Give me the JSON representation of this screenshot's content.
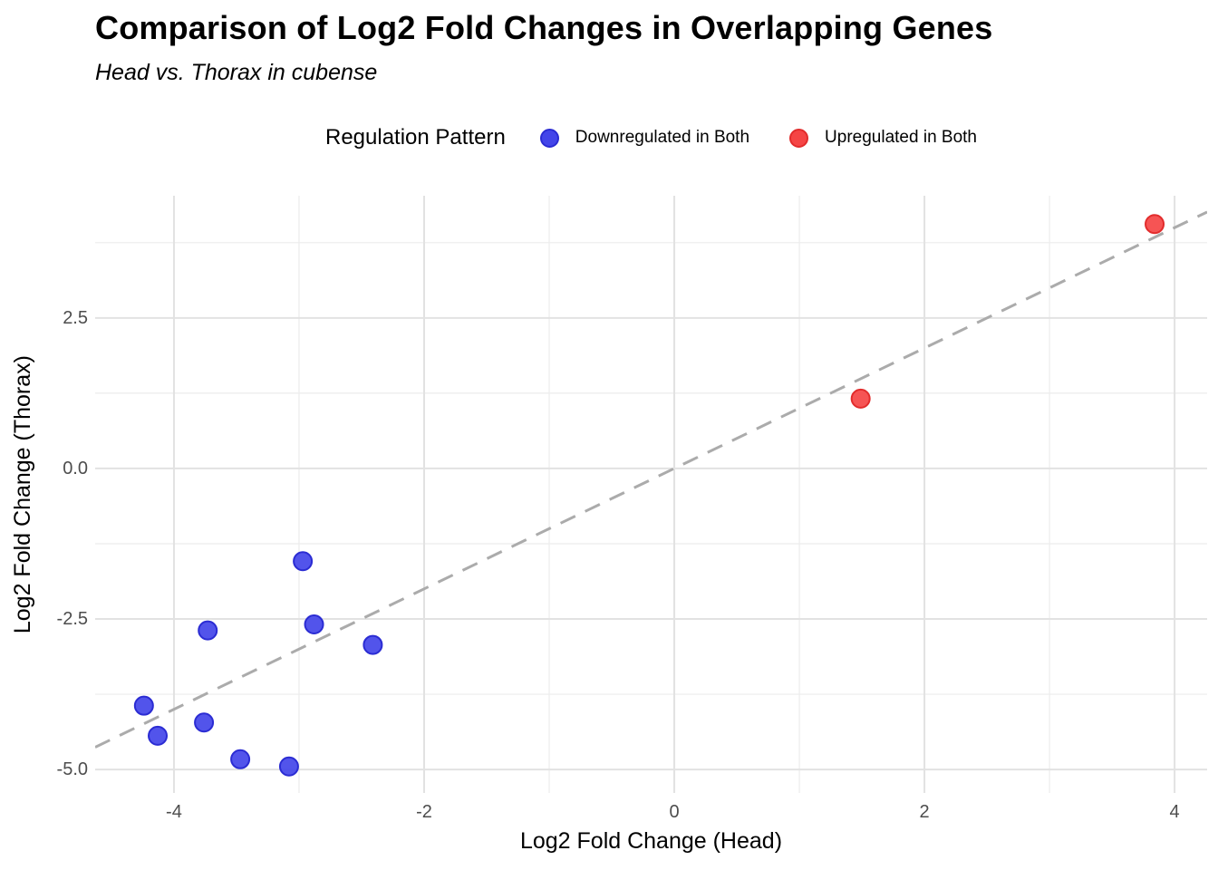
{
  "chart_data": {
    "type": "scatter",
    "title": "Comparison of Log2 Fold Changes in Overlapping Genes",
    "subtitle": "Head vs. Thorax in cubense",
    "xlabel": "Log2 Fold Change (Head)",
    "ylabel": "Log2 Fold Change (Thorax)",
    "legend_title": "Regulation Pattern",
    "legend_position": "top-center",
    "grid": true,
    "xlim": [
      -4.63,
      4.26
    ],
    "ylim": [
      -5.39,
      4.53
    ],
    "x_ticks": [
      {
        "v": -4,
        "label": "-4"
      },
      {
        "v": -2,
        "label": "-2"
      },
      {
        "v": 0,
        "label": "0"
      },
      {
        "v": 2,
        "label": "2"
      },
      {
        "v": 4,
        "label": "4"
      }
    ],
    "y_ticks": [
      {
        "v": 2.5,
        "label": "2.5"
      },
      {
        "v": 0,
        "label": "0.0"
      },
      {
        "v": -2.5,
        "label": "-2.5"
      },
      {
        "v": -5,
        "label": "-5.0"
      }
    ],
    "x_minor_ticks": [
      -3,
      -1,
      1,
      3
    ],
    "y_minor_ticks": [
      3.75,
      1.25,
      -1.25,
      -3.75
    ],
    "reference_line": {
      "kind": "identity",
      "slope": 1,
      "intercept": 0,
      "style": "dashed"
    },
    "series": [
      {
        "name": "Downregulated in Both",
        "fill": "#4345E9",
        "stroke": "#2B2CD3",
        "points": [
          [
            -4.24,
            -3.94
          ],
          [
            -4.13,
            -4.44
          ],
          [
            -3.76,
            -4.22
          ],
          [
            -3.73,
            -2.69
          ],
          [
            -3.47,
            -4.83
          ],
          [
            -3.08,
            -4.95
          ],
          [
            -2.97,
            -1.54
          ],
          [
            -2.88,
            -2.59
          ],
          [
            -2.41,
            -2.93
          ]
        ]
      },
      {
        "name": "Upregulated in Both",
        "fill": "#F54545",
        "stroke": "#E22C2C",
        "points": [
          [
            1.49,
            1.16
          ],
          [
            3.84,
            4.06
          ]
        ]
      }
    ]
  },
  "style": {
    "background": "#FFFFFF",
    "grid_major_color": "#E2E2E2",
    "grid_minor_color": "#ECECEC",
    "reference_line_color": "#ABABAB",
    "tick_label_color": "#4D4D4D",
    "point_radius": 10
  }
}
